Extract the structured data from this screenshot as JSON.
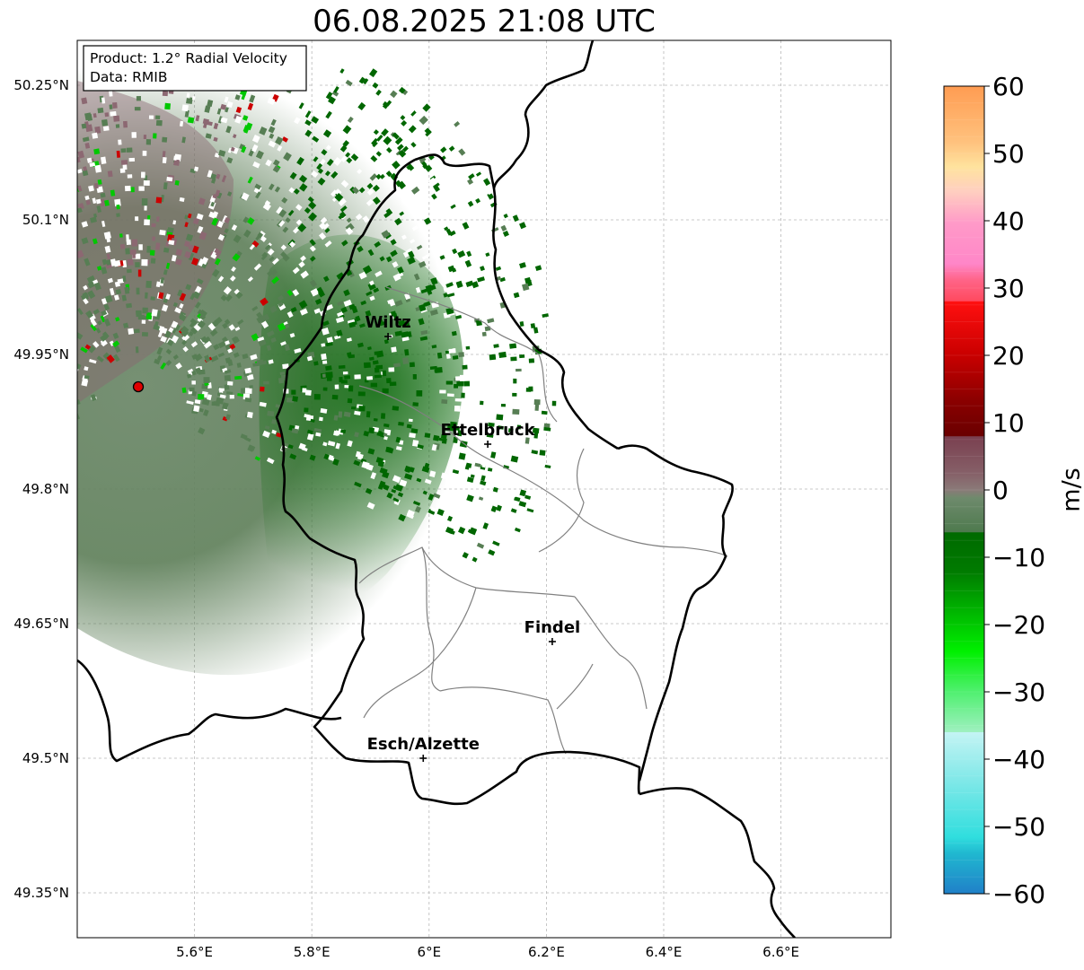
{
  "title": "06.08.2025 21:08 UTC",
  "info_box": {
    "product": "Product: 1.2° Radial Velocity",
    "data": "Data: RMIB"
  },
  "map": {
    "lon_range": [
      5.4,
      6.8
    ],
    "lat_range": [
      49.3,
      50.3
    ],
    "lat_ticks": [
      "50.25°N",
      "50.1°N",
      "49.95°N",
      "49.8°N",
      "49.65°N",
      "49.5°N",
      "49.35°N"
    ],
    "lon_ticks": [
      "5.6°E",
      "5.8°E",
      "6°E",
      "6.2°E",
      "6.4°E",
      "6.6°E"
    ],
    "gridlines": true,
    "radar_site": {
      "lon": 5.505,
      "lat": 49.914
    },
    "cities": [
      {
        "name": "Wiltz",
        "lon": 5.93,
        "lat": 49.97
      },
      {
        "name": "Ettelbruck",
        "lon": 6.1,
        "lat": 49.85
      },
      {
        "name": "Findel",
        "lon": 6.21,
        "lat": 49.63
      },
      {
        "name": "Esch/Alzette",
        "lon": 5.99,
        "lat": 49.5
      }
    ]
  },
  "colorbar": {
    "label": "m/s",
    "ticks": [
      "60",
      "50",
      "40",
      "30",
      "20",
      "10",
      "0",
      "−10",
      "−20",
      "−30",
      "−40",
      "−50",
      "−60"
    ],
    "range": [
      -60,
      60
    ]
  },
  "colors": {
    "border": "#000000",
    "canton": "#808080",
    "radar_marker": "#e00000"
  }
}
